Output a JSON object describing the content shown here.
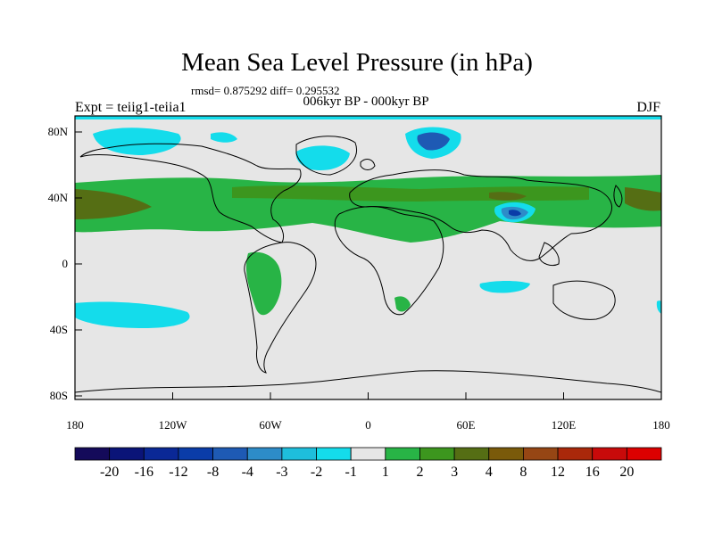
{
  "title": "Mean Sea Level Pressure (in hPa)",
  "stats": "rmsd= 0.875292  diff= 0.295532",
  "left_label": "Expt = teiig1-teiia1",
  "center_label": "006kyr BP - 000kyr BP",
  "right_label": "DJF",
  "lat_ticks": [
    "80N",
    "40N",
    "0",
    "40S",
    "80S"
  ],
  "lon_ticks": [
    "180",
    "120W",
    "60W",
    "0",
    "60E",
    "120E",
    "180"
  ],
  "colorbar": {
    "labels": [
      "-20",
      "-16",
      "-12",
      "-8",
      "-4",
      "-3",
      "-2",
      "-1",
      "1",
      "2",
      "3",
      "4",
      "8",
      "12",
      "16",
      "20"
    ],
    "colors": [
      "#140a5a",
      "#0a1478",
      "#0a2896",
      "#0a3ca8",
      "#1e5ab4",
      "#2d8cc8",
      "#1ebedc",
      "#14dceb",
      "#e6e6e6",
      "#28b446",
      "#3c961e",
      "#556e14",
      "#7a5a0a",
      "#964614",
      "#aa280a",
      "#c80a0a",
      "#dc0000"
    ]
  },
  "colors": {
    "background": "#e6e6e6",
    "coast": "#000000"
  }
}
